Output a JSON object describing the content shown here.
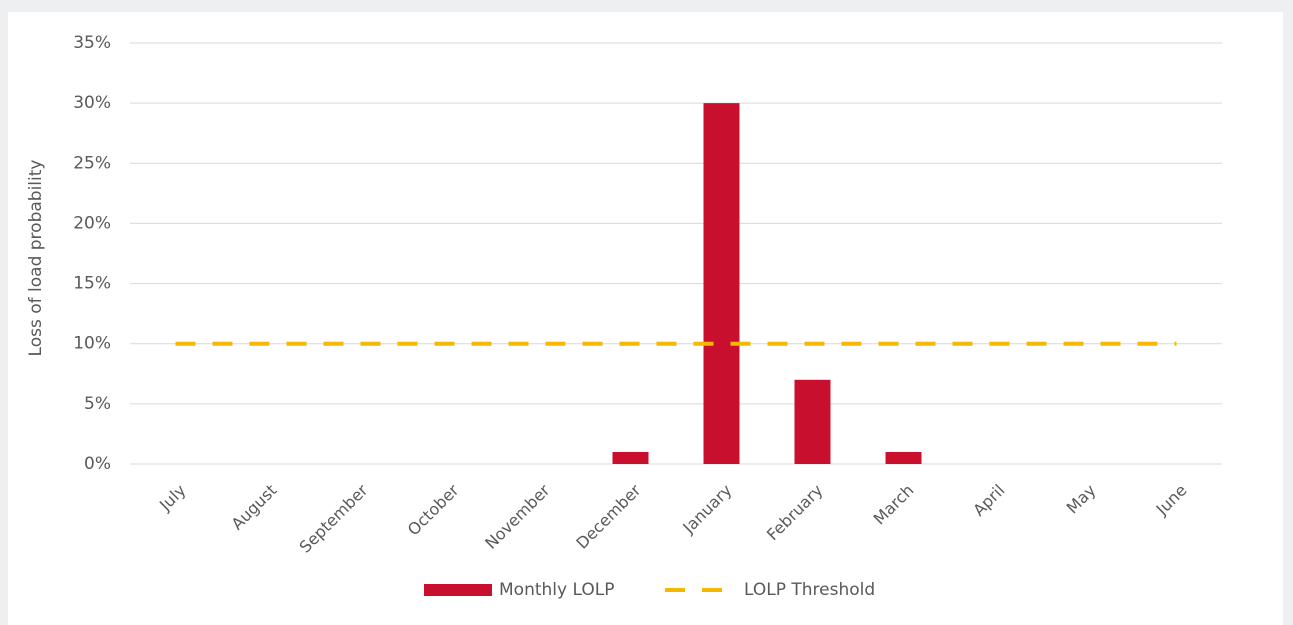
{
  "chart_data": {
    "type": "bar",
    "y_label": "Loss of load probability",
    "categories": [
      "July",
      "August",
      "September",
      "October",
      "November",
      "December",
      "January",
      "February",
      "March",
      "April",
      "May",
      "June"
    ],
    "series": [
      {
        "name": "Monthly LOLP",
        "type": "bar",
        "color": "#c8102e",
        "values": [
          0,
          0,
          0,
          0,
          0,
          1,
          30,
          7,
          1,
          0,
          0,
          0
        ]
      },
      {
        "name": "LOLP Threshold",
        "type": "line",
        "dashed": true,
        "color": "#f5b800",
        "values": [
          10,
          10,
          10,
          10,
          10,
          10,
          10,
          10,
          10,
          10,
          10,
          10
        ]
      }
    ],
    "ylim": [
      0,
      35
    ],
    "yticks": [
      {
        "value": 0,
        "label": "0%"
      },
      {
        "value": 5,
        "label": "5%"
      },
      {
        "value": 10,
        "label": "10%"
      },
      {
        "value": 15,
        "label": "15%"
      },
      {
        "value": 20,
        "label": "20%"
      },
      {
        "value": 25,
        "label": "25%"
      },
      {
        "value": 30,
        "label": "30%"
      },
      {
        "value": 35,
        "label": "35%"
      }
    ],
    "grid": true,
    "legend": "bottom"
  }
}
